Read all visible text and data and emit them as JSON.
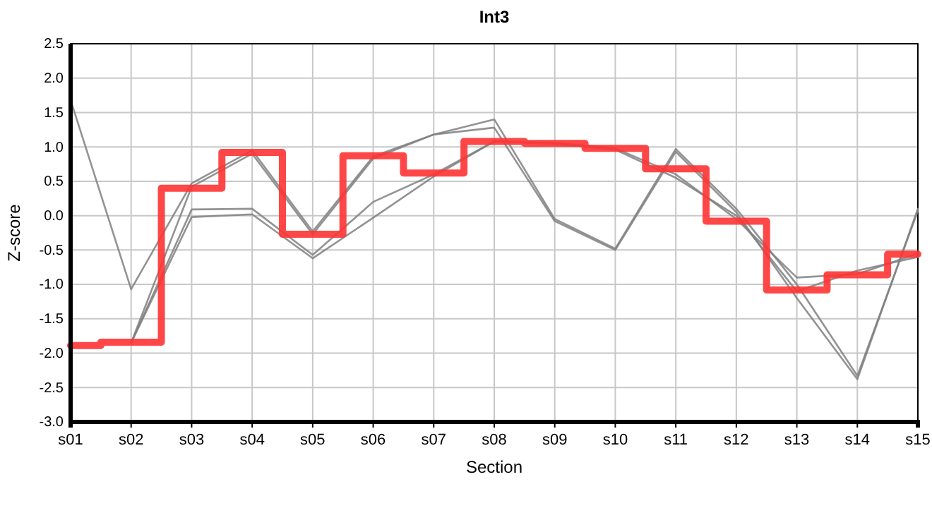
{
  "chart_data": {
    "type": "line",
    "title": "Int3",
    "xlabel": "Section",
    "ylabel": "Z-score",
    "categories": [
      "s01",
      "s02",
      "s03",
      "s04",
      "s05",
      "s06",
      "s07",
      "s08",
      "s09",
      "s10",
      "s11",
      "s12",
      "s13",
      "s14",
      "s15"
    ],
    "ylim": [
      -3,
      2.5
    ],
    "yticks": [
      {
        "value": -3,
        "label": "-3.0"
      },
      -2.5,
      {
        "value": -2,
        "label": "-2.0"
      },
      -1.5,
      {
        "value": -1,
        "label": "-1.0"
      },
      -0.5,
      {
        "value": 0,
        "label": "0.0"
      },
      0.5,
      {
        "value": 1,
        "label": "1.0"
      },
      1.5,
      {
        "value": 2,
        "label": "2.0"
      },
      2.5
    ],
    "grid": true,
    "series": [
      {
        "color": "#808080",
        "values": [
          1.68,
          -1.07,
          0.47,
          0.95,
          -0.23,
          0.86,
          1.18,
          1.4,
          -0.05,
          -0.48,
          0.97,
          0.1,
          -1.0,
          -2.33,
          0.07
        ]
      },
      {
        "color": "#808080",
        "values": [
          null,
          -1.85,
          0.42,
          0.9,
          -0.27,
          0.83,
          1.18,
          1.28,
          -0.08,
          -0.5,
          0.93,
          0.05,
          -1.2,
          -2.38,
          0.1
        ]
      },
      {
        "color": "#808080",
        "values": [
          null,
          -1.85,
          0.09,
          0.1,
          -0.57,
          0.2,
          0.6,
          1.08,
          1.06,
          0.98,
          0.6,
          -0.05,
          -0.9,
          -0.85,
          -0.55
        ]
      },
      {
        "color": "#808080",
        "values": [
          null,
          -1.85,
          -0.02,
          0.02,
          -0.62,
          -0.03,
          0.57,
          1.08,
          1.04,
          0.96,
          0.55,
          0.0,
          -1.1,
          -0.8,
          -0.6
        ]
      },
      {
        "type": "step",
        "color": "#ff3333",
        "values": [
          -1.89,
          -1.84,
          0.4,
          0.92,
          -0.27,
          0.87,
          0.62,
          1.08,
          1.05,
          0.98,
          0.68,
          -0.08,
          -1.08,
          -0.86,
          -0.56
        ]
      }
    ]
  }
}
